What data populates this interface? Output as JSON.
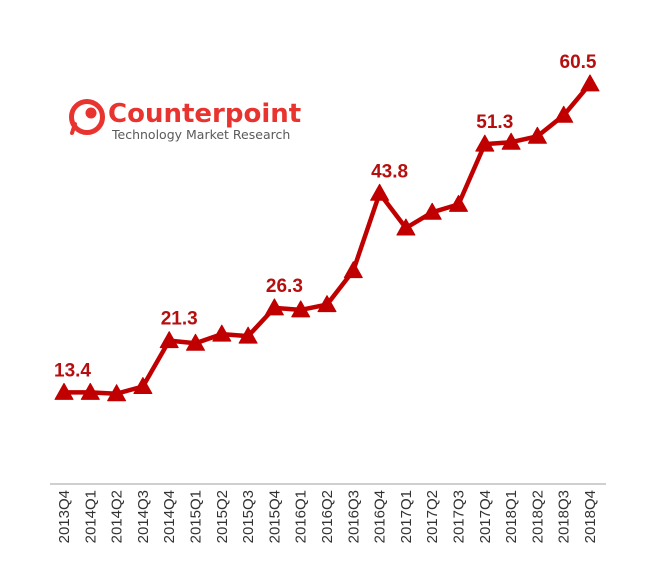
{
  "colors": {
    "series": "#c00000",
    "label": "#b50f0f",
    "logo_red": "#e8332f",
    "logo_gray": "#5a5a5a",
    "axis": "#bfbfbf",
    "tick": "#333333"
  },
  "logo": {
    "name": "Counterpoint",
    "tagline": "Technology Market Research",
    "icon": "counterpoint-logo-icon"
  },
  "chart_data": {
    "type": "line",
    "title": "",
    "xlabel": "",
    "ylabel": "",
    "grid": false,
    "legend": "none",
    "marker": "triangle",
    "categories": [
      "2013Q4",
      "2014Q1",
      "2014Q2",
      "2014Q3",
      "2014Q4",
      "2015Q1",
      "2015Q2",
      "2015Q3",
      "2015Q4",
      "2016Q1",
      "2016Q2",
      "2016Q3",
      "2016Q4",
      "2017Q1",
      "2017Q2",
      "2017Q3",
      "2017Q4",
      "2018Q1",
      "2018Q2",
      "2018Q3",
      "2018Q4"
    ],
    "series": [
      {
        "values": [
          13.4,
          13.4,
          13.2,
          14.3,
          21.3,
          20.9,
          22.3,
          22.0,
          26.3,
          26.0,
          26.8,
          32.0,
          43.8,
          38.5,
          40.9,
          42.1,
          51.3,
          51.6,
          52.5,
          55.7,
          60.5
        ]
      }
    ],
    "data_labels": [
      {
        "index": 0,
        "text": "13.4"
      },
      {
        "index": 4,
        "text": "21.3"
      },
      {
        "index": 8,
        "text": "26.3"
      },
      {
        "index": 12,
        "text": "43.8"
      },
      {
        "index": 16,
        "text": "51.3"
      },
      {
        "index": 20,
        "text": "60.5"
      }
    ]
  }
}
